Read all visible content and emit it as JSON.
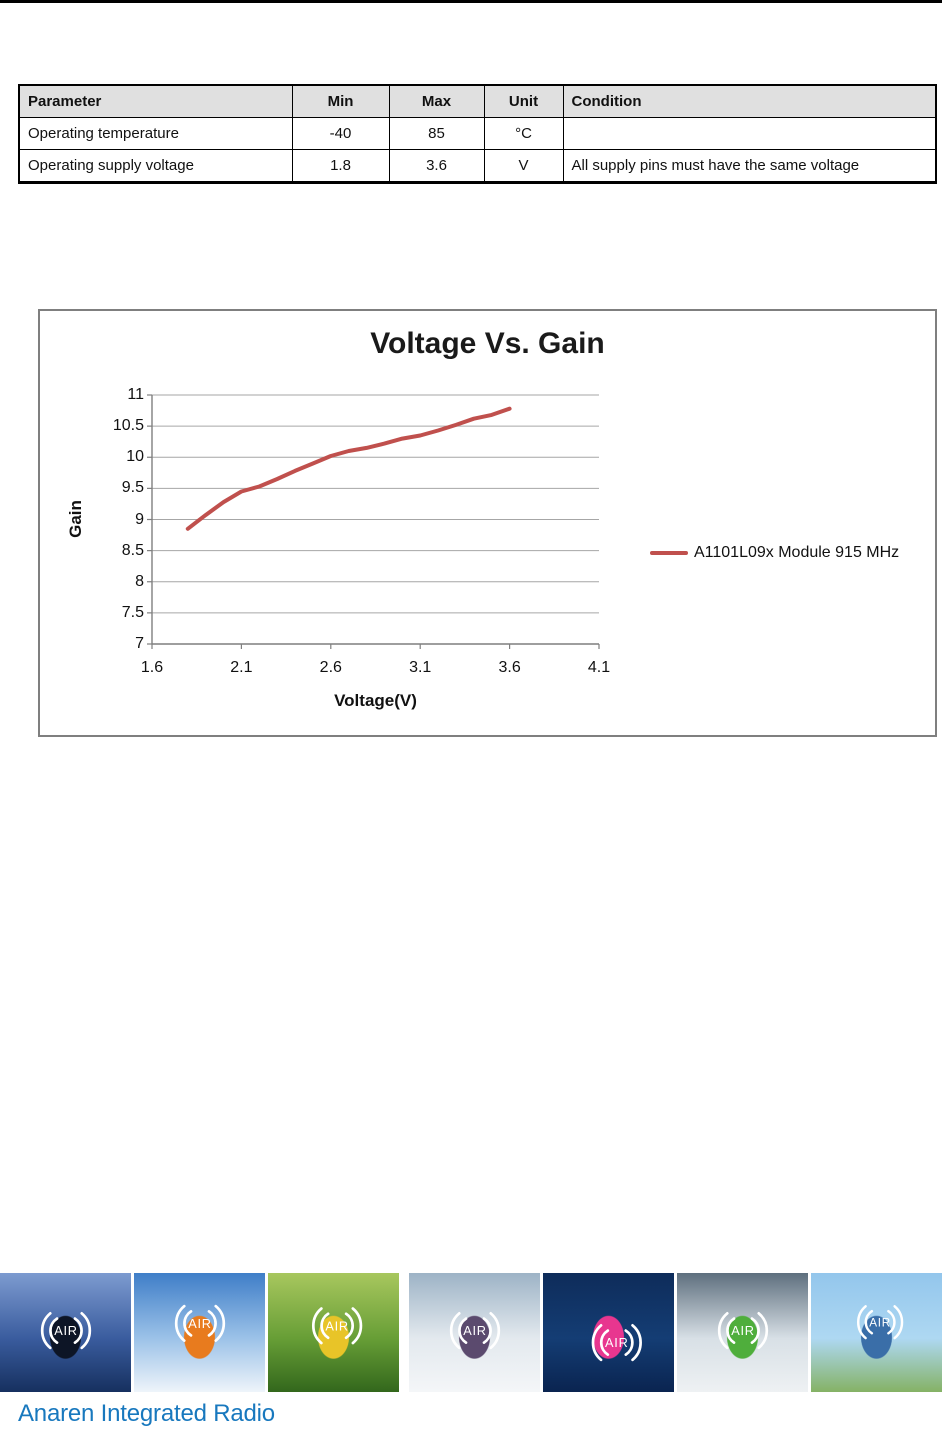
{
  "spec_table": {
    "headers": [
      "Parameter",
      "Min",
      "Max",
      "Unit",
      "Condition"
    ],
    "rows": [
      [
        "Operating temperature",
        "-40",
        "85",
        "°C",
        ""
      ],
      [
        "Operating supply voltage",
        "1.8",
        "3.6",
        "V",
        "All supply pins must have the same voltage"
      ]
    ],
    "header_bg": "#e0e0e0"
  },
  "chart_data": {
    "type": "line",
    "title": "Voltage Vs. Gain",
    "xlabel": "Voltage(V)",
    "ylabel": "Gain",
    "xlim": [
      1.6,
      4.1
    ],
    "ylim": [
      7,
      11
    ],
    "xticks": [
      1.6,
      2.1,
      2.6,
      3.1,
      3.6,
      4.1
    ],
    "yticks": [
      7,
      7.5,
      8,
      8.5,
      9,
      9.5,
      10,
      10.5,
      11
    ],
    "grid": "horizontal-major",
    "legend_position": "right-middle",
    "colors": {
      "gridline": "#a6a6a6",
      "axis": "#7f7f7f",
      "frame": "#7f7f7f"
    },
    "series": [
      {
        "name": "A1101L09x Module 915 MHz",
        "color": "#C0504D",
        "points": [
          [
            1.8,
            8.85
          ],
          [
            1.9,
            9.07
          ],
          [
            2.0,
            9.28
          ],
          [
            2.1,
            9.45
          ],
          [
            2.2,
            9.53
          ],
          [
            2.3,
            9.65
          ],
          [
            2.4,
            9.78
          ],
          [
            2.5,
            9.9
          ],
          [
            2.6,
            10.02
          ],
          [
            2.7,
            10.1
          ],
          [
            2.8,
            10.15
          ],
          [
            2.9,
            10.22
          ],
          [
            3.0,
            10.3
          ],
          [
            3.1,
            10.35
          ],
          [
            3.2,
            10.43
          ],
          [
            3.3,
            10.52
          ],
          [
            3.4,
            10.62
          ],
          [
            3.5,
            10.68
          ],
          [
            3.6,
            10.78
          ]
        ]
      }
    ]
  },
  "footer": {
    "brand_text": "Anaren Integrated Radio",
    "brand_color": "#1878BE",
    "air_logo_text": "AIR",
    "panels": [
      {
        "name": "skateboarder",
        "colors": [
          "#7d9bd0",
          "#3a5c9e",
          "#16305f"
        ],
        "accent": "#0d1526"
      },
      {
        "name": "skier",
        "colors": [
          "#3f7ec8",
          "#9cc2e8",
          "#eef4fa"
        ],
        "accent": "#e87b1e"
      },
      {
        "name": "mountain-biker",
        "colors": [
          "#a8c75e",
          "#679e36",
          "#33671c"
        ],
        "accent": "#e8c428"
      },
      {
        "name": "snowboarder",
        "colors": [
          "#9db3c6",
          "#e3e9ee",
          "#f4f6f8"
        ],
        "accent": "#5b4a6e"
      },
      {
        "name": "windsurfer",
        "colors": [
          "#0e2c5a",
          "#143d74",
          "#0a2450"
        ],
        "accent": "#e8368f"
      },
      {
        "name": "kayaker",
        "colors": [
          "#5e6f7e",
          "#d8e0e6",
          "#eef1f3"
        ],
        "accent": "#4fae3c"
      },
      {
        "name": "inline-skater",
        "colors": [
          "#93c6ec",
          "#aed8f2",
          "#85b265"
        ],
        "accent": "#3a6ea8"
      }
    ]
  }
}
